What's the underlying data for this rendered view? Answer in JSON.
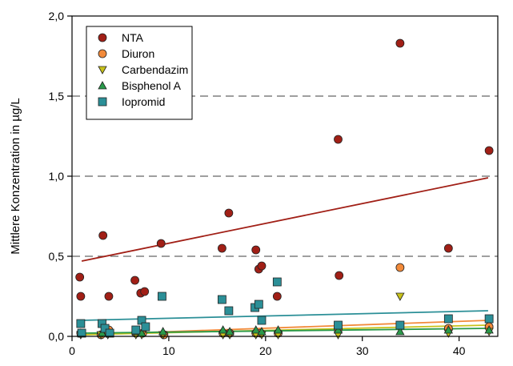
{
  "chart_data": {
    "type": "scatter",
    "title": "",
    "xlabel": "",
    "ylabel": "Mittlere Konzentration in µg/L",
    "xlim": [
      0,
      44
    ],
    "ylim": [
      0,
      2.0
    ],
    "x_ticks": [
      0,
      10,
      20,
      30,
      40
    ],
    "x_tick_labels": [
      "0",
      "10",
      "20",
      "30",
      "40"
    ],
    "y_ticks": [
      0,
      0.5,
      1.0,
      1.5,
      2.0
    ],
    "y_tick_labels": [
      "0,0",
      "0,5",
      "1,0",
      "1,5",
      "2,0"
    ],
    "grid": "horizontal dashed at 0,5 / 1,0 / 1,5",
    "legend_position": "top-left",
    "series": [
      {
        "name": "NTA",
        "marker": "circle",
        "color": "#a11f16",
        "points": [
          [
            0.8,
            0.37
          ],
          [
            0.9,
            0.25
          ],
          [
            3.2,
            0.63
          ],
          [
            3.8,
            0.25
          ],
          [
            6.5,
            0.35
          ],
          [
            7.1,
            0.27
          ],
          [
            7.5,
            0.28
          ],
          [
            9.2,
            0.58
          ],
          [
            15.5,
            0.55
          ],
          [
            16.2,
            0.77
          ],
          [
            19.0,
            0.54
          ],
          [
            19.3,
            0.42
          ],
          [
            19.6,
            0.44
          ],
          [
            21.2,
            0.25
          ],
          [
            27.5,
            1.23
          ],
          [
            27.6,
            0.38
          ],
          [
            33.9,
            1.83
          ],
          [
            38.9,
            0.55
          ],
          [
            43.1,
            1.16
          ]
        ],
        "trend": [
          [
            1,
            0.47
          ],
          [
            43,
            0.99
          ]
        ]
      },
      {
        "name": "Diuron",
        "marker": "circle",
        "color": "#f28a3a",
        "points": [
          [
            0.9,
            0.02
          ],
          [
            3.0,
            0.01
          ],
          [
            3.8,
            0.04
          ],
          [
            6.6,
            0.02
          ],
          [
            7.3,
            0.02
          ],
          [
            9.5,
            0.01
          ],
          [
            15.6,
            0.02
          ],
          [
            16.3,
            0.02
          ],
          [
            19.0,
            0.02
          ],
          [
            19.5,
            0.02
          ],
          [
            21.3,
            0.02
          ],
          [
            27.5,
            0.05
          ],
          [
            33.9,
            0.43
          ],
          [
            38.9,
            0.05
          ],
          [
            43.1,
            0.06
          ]
        ],
        "trend": [
          [
            1,
            0.01
          ],
          [
            43,
            0.1
          ]
        ]
      },
      {
        "name": "Carbendazim",
        "marker": "triangle-down",
        "color": "#c8c21a",
        "points": [
          [
            0.9,
            0.01
          ],
          [
            3.0,
            0.01
          ],
          [
            3.7,
            0.01
          ],
          [
            6.6,
            0.01
          ],
          [
            7.2,
            0.01
          ],
          [
            9.4,
            0.01
          ],
          [
            15.6,
            0.01
          ],
          [
            16.3,
            0.01
          ],
          [
            19.0,
            0.01
          ],
          [
            19.6,
            0.01
          ],
          [
            21.3,
            0.01
          ],
          [
            27.5,
            0.01
          ],
          [
            33.9,
            0.25
          ],
          [
            38.9,
            0.02
          ],
          [
            43.1,
            0.03
          ]
        ],
        "trend": [
          [
            1,
            0.01
          ],
          [
            43,
            0.07
          ]
        ]
      },
      {
        "name": "Bisphenol A",
        "marker": "triangle-up",
        "color": "#2a9a4a",
        "points": [
          [
            0.9,
            0.02
          ],
          [
            3.1,
            0.02
          ],
          [
            3.8,
            0.02
          ],
          [
            6.6,
            0.03
          ],
          [
            7.2,
            0.02
          ],
          [
            9.4,
            0.03
          ],
          [
            15.6,
            0.04
          ],
          [
            16.3,
            0.03
          ],
          [
            19.0,
            0.04
          ],
          [
            19.6,
            0.03
          ],
          [
            21.3,
            0.04
          ],
          [
            27.5,
            0.04
          ],
          [
            33.9,
            0.03
          ],
          [
            38.9,
            0.04
          ],
          [
            43.1,
            0.04
          ]
        ],
        "trend": [
          [
            1,
            0.02
          ],
          [
            43,
            0.05
          ]
        ]
      },
      {
        "name": "Iopromid",
        "marker": "square",
        "color": "#2b8f97",
        "points": [
          [
            0.9,
            0.08
          ],
          [
            1.0,
            0.02
          ],
          [
            3.1,
            0.08
          ],
          [
            3.4,
            0.05
          ],
          [
            3.9,
            0.02
          ],
          [
            6.6,
            0.04
          ],
          [
            7.2,
            0.1
          ],
          [
            7.6,
            0.06
          ],
          [
            9.3,
            0.25
          ],
          [
            15.5,
            0.23
          ],
          [
            16.2,
            0.16
          ],
          [
            18.9,
            0.18
          ],
          [
            19.3,
            0.2
          ],
          [
            19.6,
            0.1
          ],
          [
            21.2,
            0.34
          ],
          [
            27.5,
            0.07
          ],
          [
            33.9,
            0.07
          ],
          [
            38.9,
            0.11
          ],
          [
            43.1,
            0.11
          ]
        ],
        "trend": [
          [
            1,
            0.1
          ],
          [
            43,
            0.16
          ]
        ]
      }
    ]
  }
}
